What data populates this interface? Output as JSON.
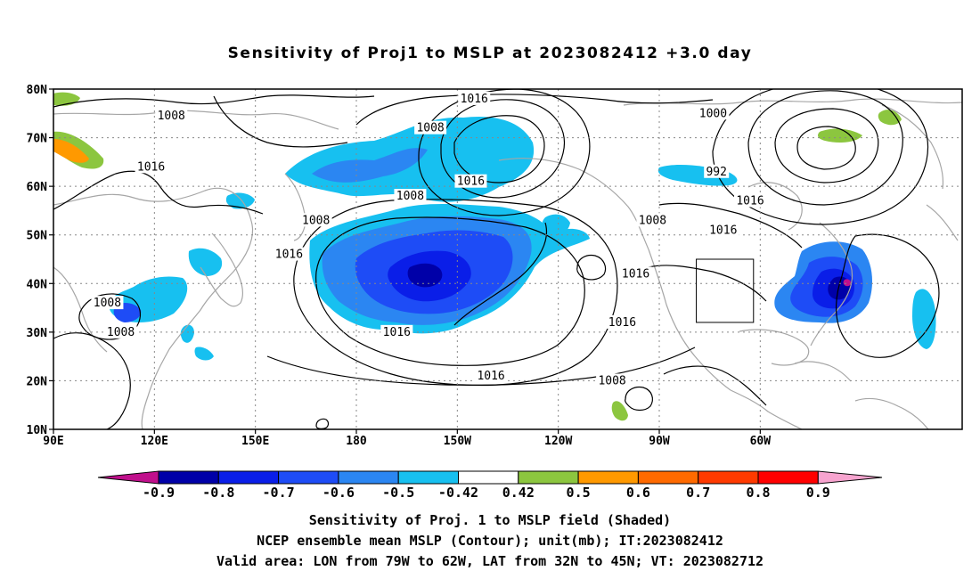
{
  "title": "Sensitivity of Proj1 to MSLP at 2023082412 +3.0 day",
  "map": {
    "lon_labels": [
      "90E",
      "120E",
      "150E",
      "180",
      "150W",
      "120W",
      "90W",
      "60W"
    ],
    "lat_labels": [
      "80N",
      "70N",
      "60N",
      "50N",
      "40N",
      "30N",
      "20N",
      "10N"
    ],
    "contour_labels": [
      {
        "text": "1008",
        "lon": 125,
        "lat": 74.5
      },
      {
        "text": "1016",
        "lon": -145,
        "lat": 78
      },
      {
        "text": "1008",
        "lon": -158,
        "lat": 72
      },
      {
        "text": "1000",
        "lon": -74,
        "lat": 75
      },
      {
        "text": "992",
        "lon": -73,
        "lat": 63
      },
      {
        "text": "1016",
        "lon": 119,
        "lat": 64
      },
      {
        "text": "1016",
        "lon": -146,
        "lat": 61
      },
      {
        "text": "1008",
        "lon": -164,
        "lat": 58
      },
      {
        "text": "1016",
        "lon": -63,
        "lat": 57
      },
      {
        "text": "1008",
        "lon": 168,
        "lat": 53
      },
      {
        "text": "1008",
        "lon": -92,
        "lat": 53
      },
      {
        "text": "1016",
        "lon": -71,
        "lat": 51
      },
      {
        "text": "1016",
        "lon": 160,
        "lat": 46
      },
      {
        "text": "1016",
        "lon": -97,
        "lat": 42
      },
      {
        "text": "1008",
        "lon": 106,
        "lat": 36
      },
      {
        "text": "1016",
        "lon": -101,
        "lat": 32
      },
      {
        "text": "1016",
        "lon": -168,
        "lat": 30
      },
      {
        "text": "1008",
        "lon": 110,
        "lat": 30
      },
      {
        "text": "1016",
        "lon": -140,
        "lat": 21
      },
      {
        "text": "1008",
        "lon": -104,
        "lat": 20
      }
    ],
    "colors": {
      "lt_m09": "#c0108c",
      "m09_m08": "#0000a8",
      "m08_m07": "#0a1ee8",
      "m07_m06": "#1e4cf6",
      "m06_m05": "#2b86f2",
      "m05_m042": "#17c0f0",
      "m042_042": "#ffffff",
      "p042_05": "#8cc63f",
      "p05_06": "#ff9900",
      "p06_07": "#ff6a00",
      "p07_08": "#ff3a00",
      "p08_09": "#ff0000",
      "gt_09": "#f7a4cf",
      "contour": "#000000",
      "coastline": "#a6a6a6",
      "grid": "#888888"
    },
    "valid_area": {
      "lon_min": -79,
      "lon_max": -62,
      "lat_min": 32,
      "lat_max": 45
    }
  },
  "colorbar": {
    "labels": [
      "-0.9",
      "-0.8",
      "-0.7",
      "-0.6",
      "-0.5",
      "-0.42",
      "0.42",
      "0.5",
      "0.6",
      "0.7",
      "0.8",
      "0.9"
    ]
  },
  "captions": {
    "line1": "Sensitivity of Proj. 1 to MSLP field (Shaded)",
    "line2": "NCEP ensemble mean MSLP (Contour); unit(mb); IT:2023082412",
    "line3": "Valid area: LON from 79W to 62W, LAT from 32N to 45N; VT: 2023082712"
  }
}
